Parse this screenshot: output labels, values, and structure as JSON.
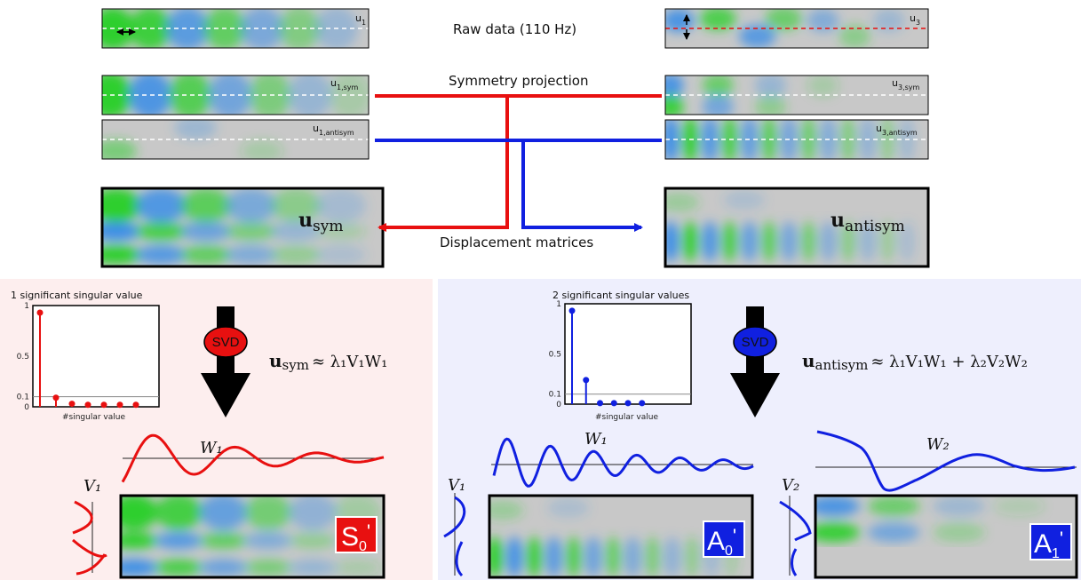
{
  "labels": {
    "raw": "Raw data (110 Hz)",
    "symmetry": "Symmetry projection",
    "displacement": "Displacement matrices",
    "sig1": "1 significant singular value",
    "sig2": "2 significant singular values",
    "singular_axis": "#singular value",
    "svd": "SVD"
  },
  "fields": {
    "u1": {
      "main": "u",
      "sub": "1"
    },
    "u3": {
      "main": "u",
      "sub": "3"
    },
    "u1sym": {
      "main": "u",
      "sub": "1,sym"
    },
    "u1anti": {
      "main": "u",
      "sub": "1,antisym"
    },
    "u3sym": {
      "main": "u",
      "sub": "3,sym"
    },
    "u3anti": {
      "main": "u",
      "sub": "3,antisym"
    }
  },
  "matrices": {
    "usym": {
      "main": "u",
      "sub": "sym"
    },
    "uanti": {
      "main": "u",
      "sub": "antisym"
    }
  },
  "equations": {
    "sym_lhs": "u",
    "sym_sub": "sym",
    "sym_rhs": "≈ λ₁V₁W₁",
    "anti_lhs": "u",
    "anti_sub": "antisym",
    "anti_rhs": "≈ λ₁V₁W₁ + λ₂V₂W₂"
  },
  "vectors": {
    "W1_left": "W₁",
    "V1_left": "V₁",
    "W1_right": "W₁",
    "V1_right": "V₁",
    "W2": "W₂",
    "V2": "V₂"
  },
  "modes": {
    "S0": {
      "main": "S",
      "sub": "0",
      "prime": "'"
    },
    "A0": {
      "main": "A",
      "sub": "0",
      "prime": "'"
    },
    "A1": {
      "main": "A",
      "sub": "1",
      "prime": "'"
    }
  },
  "ticks": [
    "1",
    "0.5",
    "0.1",
    "0"
  ],
  "chart_data": [
    {
      "type": "scatter",
      "title": "1 significant singular value",
      "xlabel": "#singular value",
      "x": [
        1,
        2,
        3,
        4,
        5,
        6,
        7
      ],
      "values": [
        0.93,
        0.09,
        0.03,
        0.02,
        0.02,
        0.02,
        0.02
      ],
      "ylim": [
        0,
        1
      ],
      "threshold": 0.1
    },
    {
      "type": "scatter",
      "title": "2 significant singular values",
      "xlabel": "#singular value",
      "x": [
        1,
        2,
        3,
        4,
        5,
        6
      ],
      "values": [
        0.93,
        0.24,
        0.01,
        0.01,
        0.01,
        0.01
      ],
      "ylim": [
        0,
        1
      ],
      "threshold": 0.1
    }
  ],
  "colors": {
    "sym": "#e81010",
    "anti": "#1020e0",
    "green": "#2ecf2e",
    "blue": "#3d8fe6",
    "grey": "#c8c8c8",
    "panel_left": "#fdeeee",
    "panel_right": "#eeeffd"
  }
}
